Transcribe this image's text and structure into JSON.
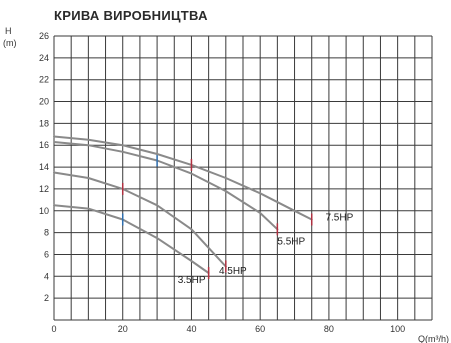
{
  "chart_data": {
    "type": "line",
    "title": "КРИВА ВИРОБНИЦТВА",
    "ylabel": "H (m)",
    "xlabel": "Q(m³/h)",
    "xlim": [
      0,
      110
    ],
    "ylim": [
      0,
      26
    ],
    "x_ticks": [
      0,
      20,
      40,
      60,
      80,
      100
    ],
    "y_ticks": [
      2,
      4,
      6,
      8,
      10,
      12,
      14,
      16,
      18,
      20,
      22,
      24,
      26
    ],
    "grid": true,
    "series": [
      {
        "name": "3.5HP",
        "x": [
          0,
          10,
          20,
          30,
          40,
          45
        ],
        "y": [
          10.5,
          10.2,
          9.2,
          7.5,
          5.4,
          4.3
        ],
        "label_at": [
          36,
          3.4
        ]
      },
      {
        "name": "4.5HP",
        "x": [
          0,
          10,
          20,
          30,
          40,
          50
        ],
        "y": [
          13.5,
          13.0,
          12.0,
          10.5,
          8.3,
          4.9
        ],
        "label_at": [
          48,
          4.2
        ]
      },
      {
        "name": "5.5HP",
        "x": [
          0,
          10,
          20,
          30,
          40,
          50,
          60,
          65
        ],
        "y": [
          16.3,
          16.0,
          15.4,
          14.6,
          13.4,
          11.8,
          9.8,
          8.3
        ],
        "label_at": [
          65,
          6.9
        ]
      },
      {
        "name": "7.5HP",
        "x": [
          0,
          10,
          20,
          30,
          40,
          50,
          60,
          70,
          75
        ],
        "y": [
          16.8,
          16.5,
          16.0,
          15.2,
          14.2,
          13.0,
          11.6,
          10.0,
          9.2
        ],
        "label_at": [
          79,
          9.1
        ]
      }
    ]
  },
  "colors": {
    "grid": "#3a3a3a",
    "curve": "#8a8a8a",
    "marker_red": "#b03040",
    "marker_blue": "#2e6fb0"
  }
}
